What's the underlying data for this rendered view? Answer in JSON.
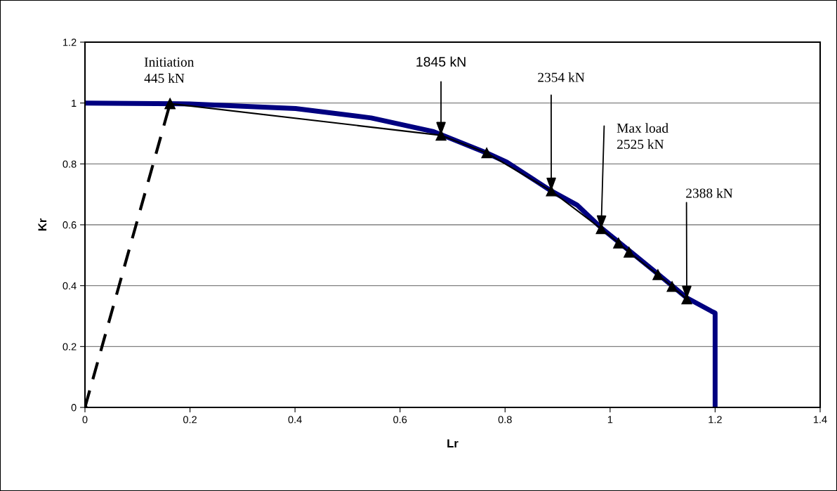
{
  "chart_data": {
    "type": "line",
    "xlabel": "Lr",
    "ylabel": "Kr",
    "xlim": [
      0,
      1.4
    ],
    "ylim": [
      0,
      1.2
    ],
    "xticks": [
      0,
      0.2,
      0.4,
      0.6,
      0.8,
      1,
      1.2,
      1.4
    ],
    "yticks": [
      0,
      0.2,
      0.4,
      0.6,
      0.8,
      1,
      1.2
    ],
    "grid": "y",
    "legend": false,
    "series": [
      {
        "color": "#000080",
        "marker": "none",
        "line_style": "solid",
        "x": [
          0,
          0.2,
          0.401,
          0.545,
          0.664,
          0.765,
          0.803,
          0.888,
          0.937,
          0.983,
          1.04,
          1.09,
          1.146,
          1.193,
          1.2,
          1.2
        ],
        "values": [
          1.0,
          0.997,
          0.982,
          0.951,
          0.906,
          0.836,
          0.806,
          0.711,
          0.665,
          0.59,
          0.51,
          0.44,
          0.36,
          0.316,
          0.31,
          0
        ]
      },
      {
        "color": "#000000",
        "marker": "triangle",
        "line_style": "dashed",
        "x": [
          0,
          0.162
        ],
        "values": [
          0,
          0.998
        ]
      },
      {
        "color": "#000000",
        "marker": "triangle",
        "line_style": "solid",
        "x": [
          0.162,
          0.678,
          0.765,
          0.888,
          0.983,
          1.016,
          1.036,
          1.091,
          1.118,
          1.146
        ],
        "values": [
          0.998,
          0.894,
          0.836,
          0.711,
          0.587,
          0.54,
          0.51,
          0.436,
          0.397,
          0.356
        ]
      }
    ],
    "annotations": [
      {
        "text": "Initiation\n445 kN",
        "x": 0.162,
        "y": 0.998
      },
      {
        "text": "1845 kN",
        "x": 0.678,
        "y": 0.894
      },
      {
        "text": "2354 kN",
        "x": 0.888,
        "y": 0.711
      },
      {
        "text": "Max load\n2525 kN",
        "x": 0.983,
        "y": 0.587
      },
      {
        "text": "2388 kN",
        "x": 1.146,
        "y": 0.356
      }
    ]
  }
}
